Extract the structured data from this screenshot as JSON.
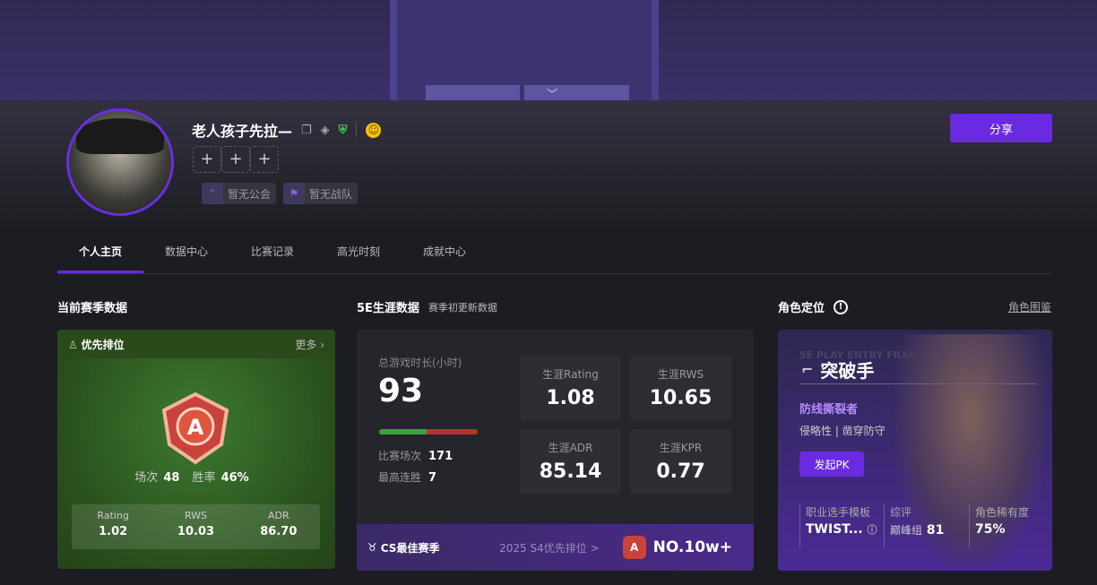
{
  "profile": {
    "name": "老人孩子先拉—",
    "guild": "暂无公会",
    "team": "暂无战队",
    "plus_slots": [
      "+",
      "+",
      "+"
    ],
    "share_label": "分享"
  },
  "tabs": [
    "个人主页",
    "数据中心",
    "比赛记录",
    "高光时刻",
    "成就中心"
  ],
  "season": {
    "title": "当前赛季数据",
    "mode": "优先排位",
    "more": "更多 ›",
    "matches_label": "场次",
    "matches": "48",
    "winrate_label": "胜率",
    "winrate": "46%",
    "stats": [
      {
        "label": "Rating",
        "value": "1.02"
      },
      {
        "label": "RWS",
        "value": "10.03"
      },
      {
        "label": "ADR",
        "value": "86.70"
      }
    ]
  },
  "career": {
    "title": "5E生涯数据",
    "subtitle": "赛季初更新数据",
    "hours_label": "总游戏时长(小时)",
    "hours": "93",
    "win_fraction": 0.48,
    "matches_label": "比赛场次",
    "matches": "171",
    "streak_label": "最高连胜",
    "streak": "7",
    "stats": [
      {
        "label": "生涯Rating",
        "value": "1.08"
      },
      {
        "label": "生涯RWS",
        "value": "10.65"
      },
      {
        "label": "生涯ADR",
        "value": "85.14"
      },
      {
        "label": "生涯KPR",
        "value": "0.77"
      }
    ],
    "best_label": "CS最佳赛季",
    "best_season": "2025 S4优先排位 >",
    "best_rank": "NO.10w+"
  },
  "role": {
    "title": "角色定位",
    "link": "角色图鉴",
    "watermark": "5E PLAY ENTRY FRAGGER",
    "name": "突破手",
    "subtitle": "防线撕裂者",
    "traits": "侵略性 | 凿穿防守",
    "pk_label": "发起PK",
    "pro_label": "职业选手模板",
    "pro": "TWIST...",
    "rating_label": "综评",
    "rating_group": "巅峰组",
    "rating": "81",
    "rarity_label": "角色稀有度",
    "rarity": "75%"
  },
  "colors": {
    "accent": "#6a2be0",
    "win": "#3aa53a",
    "loss": "#b83232"
  }
}
